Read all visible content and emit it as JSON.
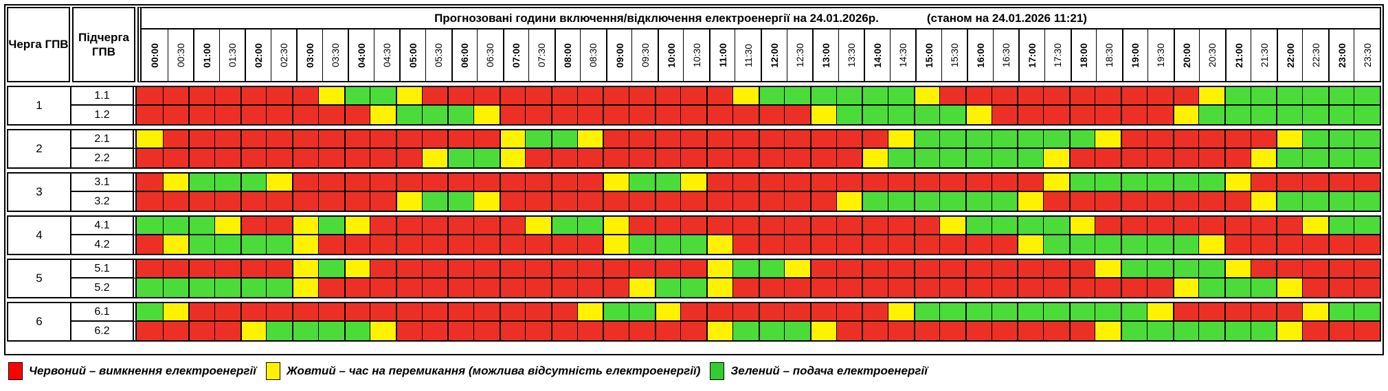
{
  "title": {
    "main": "Прогнозовані години включення/відключення електроенергії на 24.01.2026р.",
    "note": "(станом на 24.01.2026 11:21)"
  },
  "headers": {
    "queue": "Черга ГПВ",
    "subqueue": "Підчерга ГПВ"
  },
  "time_labels": [
    "00:00",
    "00:30",
    "01:00",
    "01:30",
    "02:00",
    "02:30",
    "03:00",
    "03:30",
    "04:00",
    "04:30",
    "05:00",
    "05:30",
    "06:00",
    "06:30",
    "07:00",
    "07:30",
    "08:00",
    "08:30",
    "09:00",
    "09:30",
    "10:00",
    "10:30",
    "11:00",
    "11:30",
    "12:00",
    "12:30",
    "13:00",
    "13:30",
    "14:00",
    "14:30",
    "15:00",
    "15:30",
    "16:00",
    "16:30",
    "17:00",
    "17:30",
    "18:00",
    "18:30",
    "19:00",
    "19:30",
    "20:00",
    "20:30",
    "21:00",
    "21:30",
    "22:00",
    "22:30",
    "23:00",
    "23:30"
  ],
  "colors": {
    "R": "#ED3026",
    "Y": "#FFF200",
    "G": "#4BDC3A"
  },
  "groups": [
    {
      "queue": "1",
      "rows": [
        {
          "label": "1.1",
          "cells": "RRRRRRRYGGYRRRRRRRRRRRRYGGGGGGYRRRRRRRRRRYGGGGGG"
        },
        {
          "label": "1.2",
          "cells": "RRRRRRRRRYGGGYRRRRRRRRRRRRYGGGGGYRRRRRRRYGGGGGGG"
        }
      ]
    },
    {
      "queue": "2",
      "rows": [
        {
          "label": "2.1",
          "cells": "YRRRRRRRRRRRRRYGGYRRRRRRRRRRRYGGGGGGGYRRRRRRYGGG"
        },
        {
          "label": "2.2",
          "cells": "RRRRRRRRRRRYGGYRRRRRRRRRRRRRYGGGGGGYRRRRRRRYGGGG"
        }
      ]
    },
    {
      "queue": "3",
      "rows": [
        {
          "label": "3.1",
          "cells": "RYGGGYRRRRRRRRRRRRYGGYRRRRRRRRRRRRRYGGGGGGYRRRRR"
        },
        {
          "label": "3.2",
          "cells": "RRRRRRRRRRYGGYRRRRRRRRRRRRRYGGGGGGYRRRRRRRRYGGGG"
        }
      ]
    },
    {
      "queue": "4",
      "rows": [
        {
          "label": "4.1",
          "cells": "GGGYRRYGYRRRRRRYGGYRRRRRRRRRRRRYGGGGYRRRRRRRRYGG"
        },
        {
          "label": "4.2",
          "cells": "RYGGGGYRRRRRRRRRRRYGGGYRRRRRRRRRRRYGGGGGGYRRRRRR"
        }
      ]
    },
    {
      "queue": "5",
      "rows": [
        {
          "label": "5.1",
          "cells": "RRRRRRYGYRRRRRRRRRRRRRYGGYRRRRRRRRRRRYGGGGYRRRRR"
        },
        {
          "label": "5.2",
          "cells": "GGGGGGYRRRRRRRRRRRRYGGYRRRRRRRRRRRRRRRRRYGGGYRRR"
        }
      ]
    },
    {
      "queue": "6",
      "rows": [
        {
          "label": "6.1",
          "cells": "GYRRRRRRRRRRRRRRRYGGYRRRRRRRRYGGGGGGGGGYRRRRRYGG"
        },
        {
          "label": "6.2",
          "cells": "RRRRYGGGGYRRRRRRRRRRRRYGGGYRRRRRRRRRRYGGGGGGYRRR"
        }
      ]
    }
  ],
  "legend": [
    {
      "color": "#FF0000",
      "text": "Червоний – вимкнення електроенергії"
    },
    {
      "color": "#FFF200",
      "text": "Жовтий – час на перемикання (можлива відсутність електроенергії)"
    },
    {
      "color": "#33CC33",
      "text": "Зелений – подача електроенергії"
    }
  ]
}
